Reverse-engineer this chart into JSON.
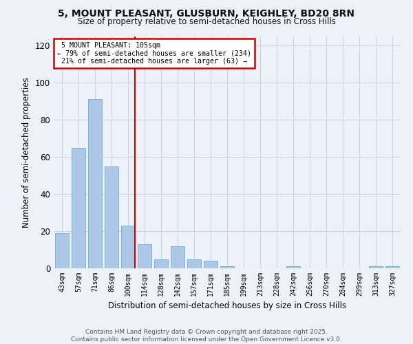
{
  "title_line1": "5, MOUNT PLEASANT, GLUSBURN, KEIGHLEY, BD20 8RN",
  "title_line2": "Size of property relative to semi-detached houses in Cross Hills",
  "xlabel": "Distribution of semi-detached houses by size in Cross Hills",
  "ylabel": "Number of semi-detached properties",
  "categories": [
    "43sqm",
    "57sqm",
    "71sqm",
    "86sqm",
    "100sqm",
    "114sqm",
    "128sqm",
    "142sqm",
    "157sqm",
    "171sqm",
    "185sqm",
    "199sqm",
    "213sqm",
    "228sqm",
    "242sqm",
    "256sqm",
    "270sqm",
    "284sqm",
    "299sqm",
    "313sqm",
    "327sqm"
  ],
  "values": [
    19,
    65,
    91,
    55,
    23,
    13,
    5,
    12,
    5,
    4,
    1,
    0,
    0,
    0,
    1,
    0,
    0,
    0,
    0,
    1,
    1
  ],
  "bar_color": "#adc8e6",
  "bar_edge_color": "#6aaad4",
  "vline_x_index": 4,
  "vline_color": "#cc0000",
  "annotation_box_color": "#cc0000",
  "property_label": "5 MOUNT PLEASANT: 105sqm",
  "pct_smaller": 79,
  "n_smaller": 234,
  "pct_larger": 21,
  "n_larger": 63,
  "ylim": [
    0,
    125
  ],
  "yticks": [
    0,
    20,
    40,
    60,
    80,
    100,
    120
  ],
  "grid_color": "#c8d8ea",
  "bg_color": "#eef2f8",
  "footer": "Contains HM Land Registry data © Crown copyright and database right 2025.\nContains public sector information licensed under the Open Government Licence v3.0."
}
